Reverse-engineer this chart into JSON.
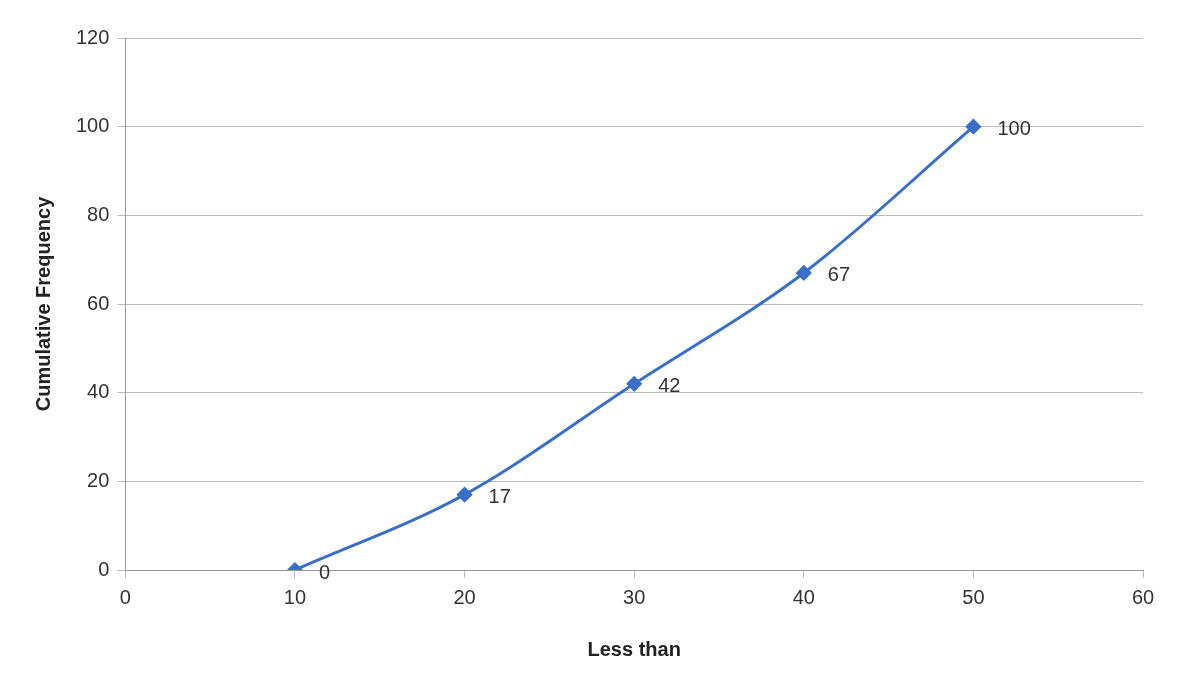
{
  "chart_data": {
    "type": "line",
    "xlabel": "Less than",
    "ylabel": "Cumulative Frequency",
    "x": [
      10,
      20,
      30,
      40,
      50
    ],
    "series": [
      {
        "color": "#3a6fc8",
        "values": [
          0,
          17,
          42,
          67,
          100
        ]
      }
    ],
    "xlim": [
      0,
      60
    ],
    "xticks": [
      0,
      10,
      20,
      30,
      40,
      50,
      60
    ],
    "ylim": [
      0,
      120
    ],
    "yticks": [
      0,
      20,
      40,
      60,
      80,
      100,
      120
    ],
    "grid": "y",
    "legend": false,
    "marker": "diamond",
    "line_style": "solid",
    "data_labels": true
  }
}
